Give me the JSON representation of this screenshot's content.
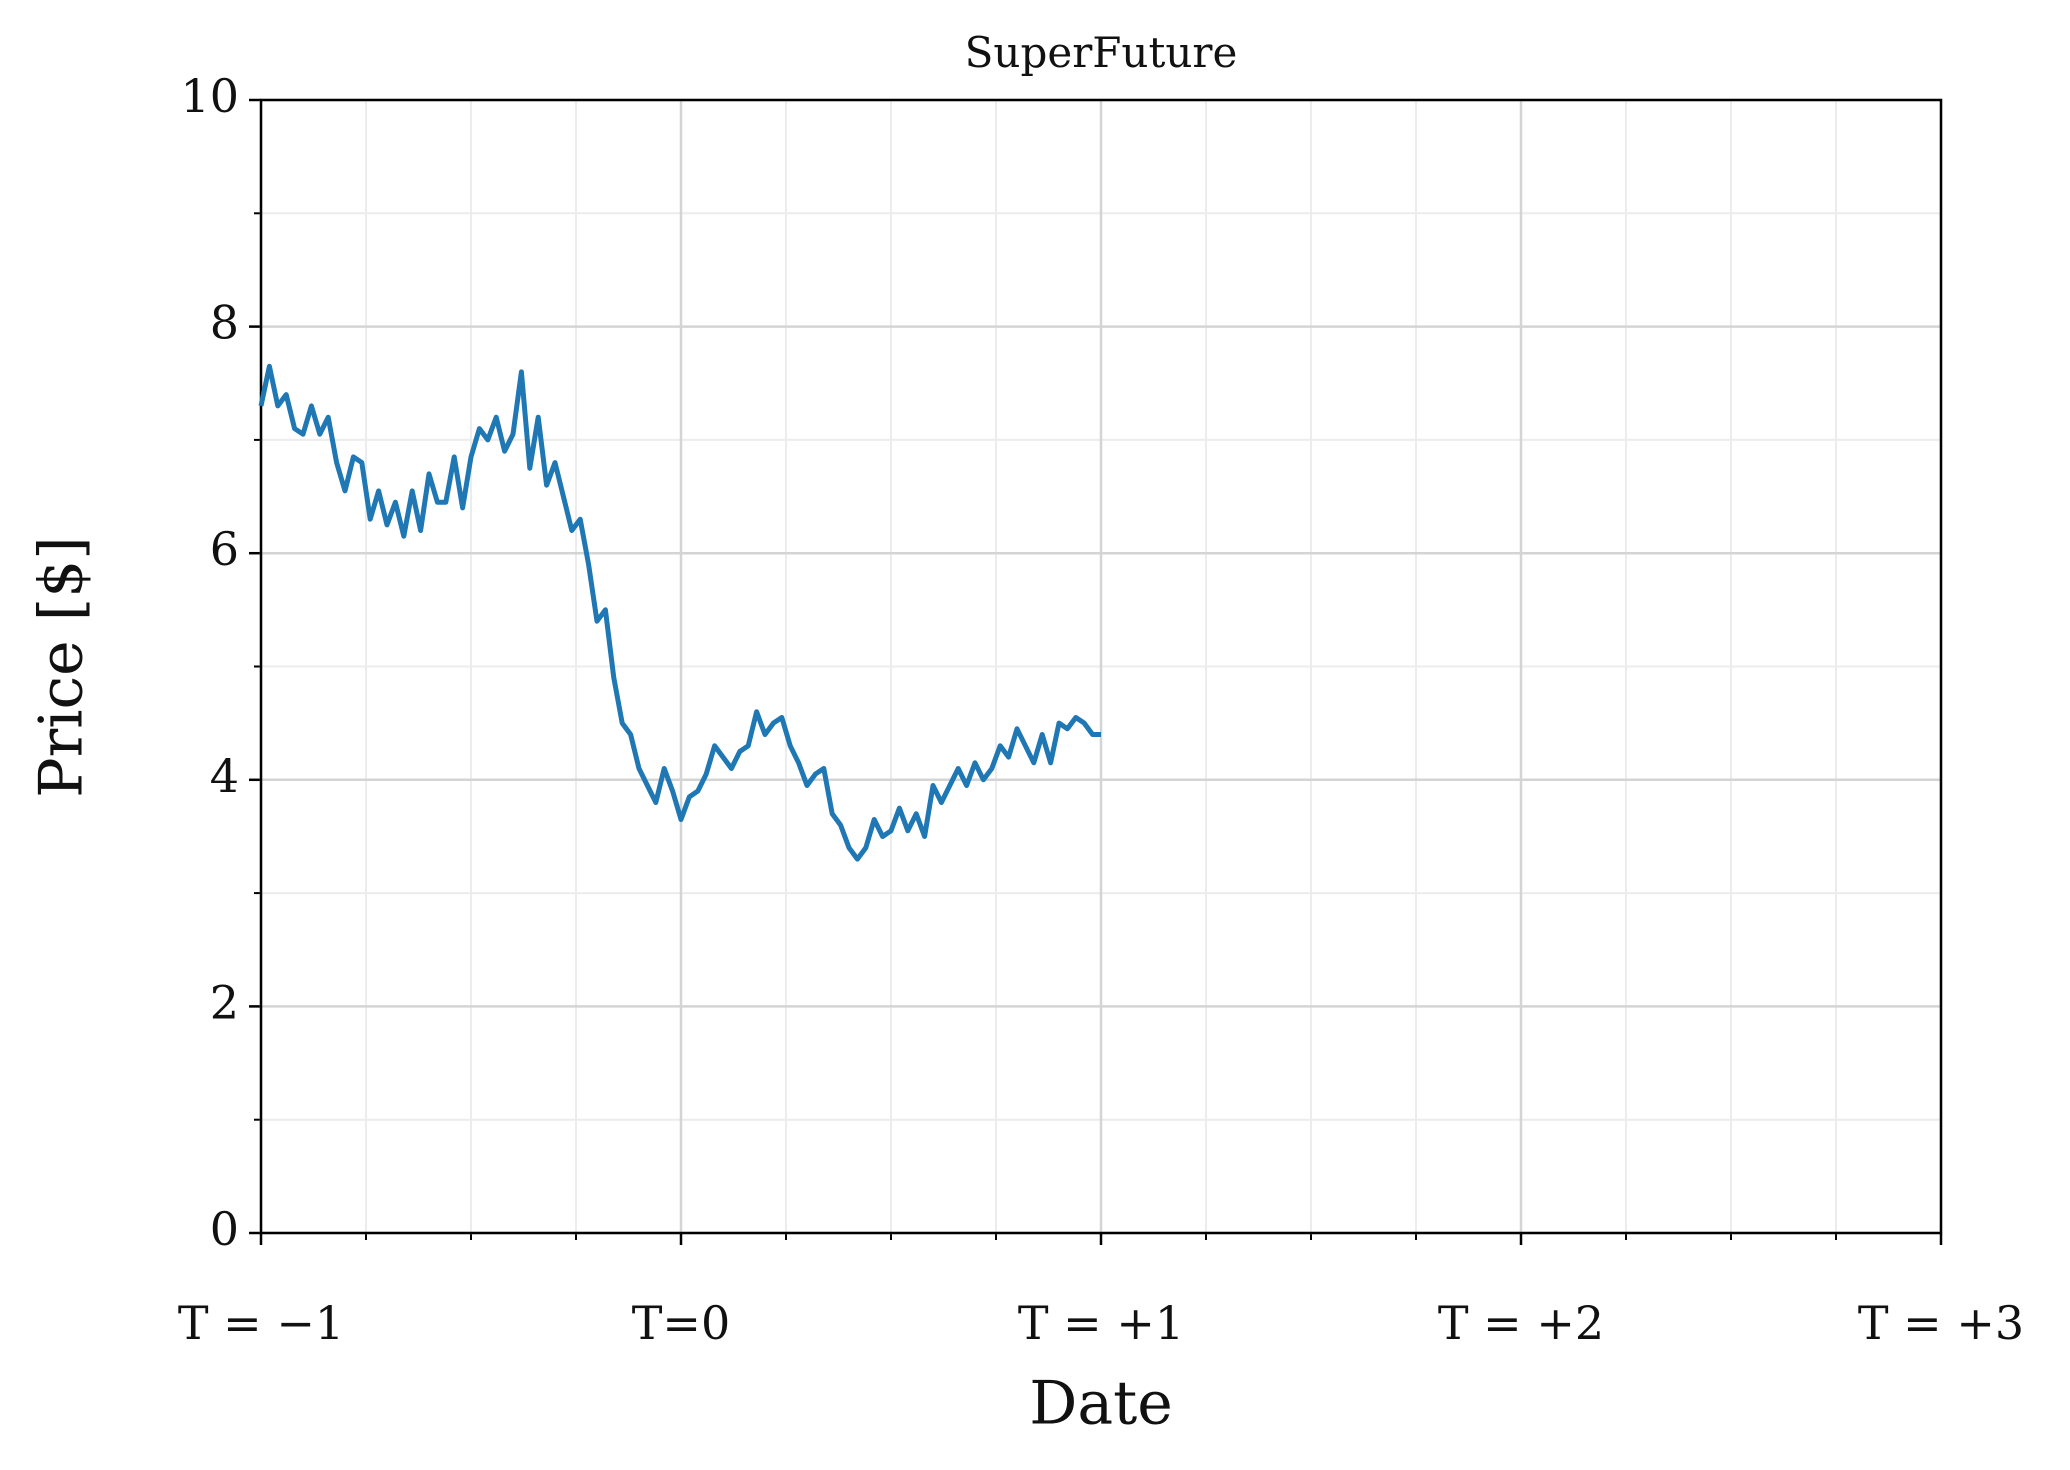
{
  "chart_data": {
    "type": "line",
    "title": "SuperFuture",
    "xlabel": "Date",
    "ylabel": "Price [$]",
    "color": "#1f77b4",
    "x": [
      -1.0,
      -0.98,
      -0.96,
      -0.94,
      -0.92,
      -0.9,
      -0.88,
      -0.86,
      -0.84,
      -0.82,
      -0.8,
      -0.78,
      -0.76,
      -0.74,
      -0.72,
      -0.7,
      -0.68,
      -0.66,
      -0.64,
      -0.62,
      -0.6,
      -0.58,
      -0.56,
      -0.54,
      -0.52,
      -0.5,
      -0.48,
      -0.46,
      -0.44,
      -0.42,
      -0.4,
      -0.38,
      -0.36,
      -0.34,
      -0.32,
      -0.3,
      -0.28,
      -0.26,
      -0.24,
      -0.22,
      -0.2,
      -0.18,
      -0.16,
      -0.14,
      -0.12,
      -0.1,
      -0.08,
      -0.06,
      -0.04,
      -0.02,
      0.0,
      0.02,
      0.04,
      0.06,
      0.08,
      0.1,
      0.12,
      0.14,
      0.16,
      0.18,
      0.2,
      0.22,
      0.24,
      0.26,
      0.28,
      0.3,
      0.32,
      0.34,
      0.36,
      0.38,
      0.4,
      0.42,
      0.44,
      0.46,
      0.48,
      0.5,
      0.52,
      0.54,
      0.56,
      0.58,
      0.6,
      0.62,
      0.64,
      0.66,
      0.68,
      0.7,
      0.72,
      0.74,
      0.76,
      0.78,
      0.8,
      0.82,
      0.84,
      0.86,
      0.88,
      0.9,
      0.92,
      0.94,
      0.96,
      0.98,
      1.0
    ],
    "values": [
      7.3,
      7.65,
      7.3,
      7.4,
      7.1,
      7.05,
      7.3,
      7.05,
      7.2,
      6.8,
      6.55,
      6.85,
      6.8,
      6.3,
      6.55,
      6.25,
      6.45,
      6.15,
      6.55,
      6.2,
      6.7,
      6.45,
      6.45,
      6.85,
      6.4,
      6.85,
      7.1,
      7.0,
      7.2,
      6.9,
      7.05,
      7.6,
      6.75,
      7.2,
      6.6,
      6.8,
      6.5,
      6.2,
      6.3,
      5.9,
      5.4,
      5.5,
      4.9,
      4.5,
      4.4,
      4.1,
      3.95,
      3.8,
      4.1,
      3.9,
      3.65,
      3.85,
      3.9,
      4.05,
      4.3,
      4.2,
      4.1,
      4.25,
      4.3,
      4.6,
      4.4,
      4.5,
      4.55,
      4.3,
      4.15,
      3.95,
      4.05,
      4.1,
      3.7,
      3.6,
      3.4,
      3.3,
      3.4,
      3.65,
      3.5,
      3.55,
      3.75,
      3.55,
      3.7,
      3.5,
      3.95,
      3.8,
      3.95,
      4.1,
      3.95,
      4.15,
      4.0,
      4.1,
      4.3,
      4.2,
      4.45,
      4.3,
      4.15,
      4.4,
      4.15,
      4.5,
      4.45,
      4.55,
      4.5,
      4.4,
      4.4
    ],
    "xlim": [
      -1,
      3
    ],
    "ylim": [
      0,
      10
    ],
    "xticks": [
      {
        "value": -1,
        "label": "T = −1"
      },
      {
        "value": 0,
        "label": "T=0"
      },
      {
        "value": 1,
        "label": "T = +1"
      },
      {
        "value": 2,
        "label": "T = +2"
      },
      {
        "value": 3,
        "label": "T = +3"
      }
    ],
    "yticks": [
      0,
      2,
      4,
      6,
      8,
      10
    ],
    "xminor_ticks": [
      -0.75,
      -0.5,
      -0.25,
      0.25,
      0.5,
      0.75,
      1.25,
      1.5,
      1.75,
      2.25,
      2.5,
      2.75
    ],
    "yminor_ticks": [
      1,
      3,
      5,
      7,
      9
    ],
    "grid": true
  }
}
